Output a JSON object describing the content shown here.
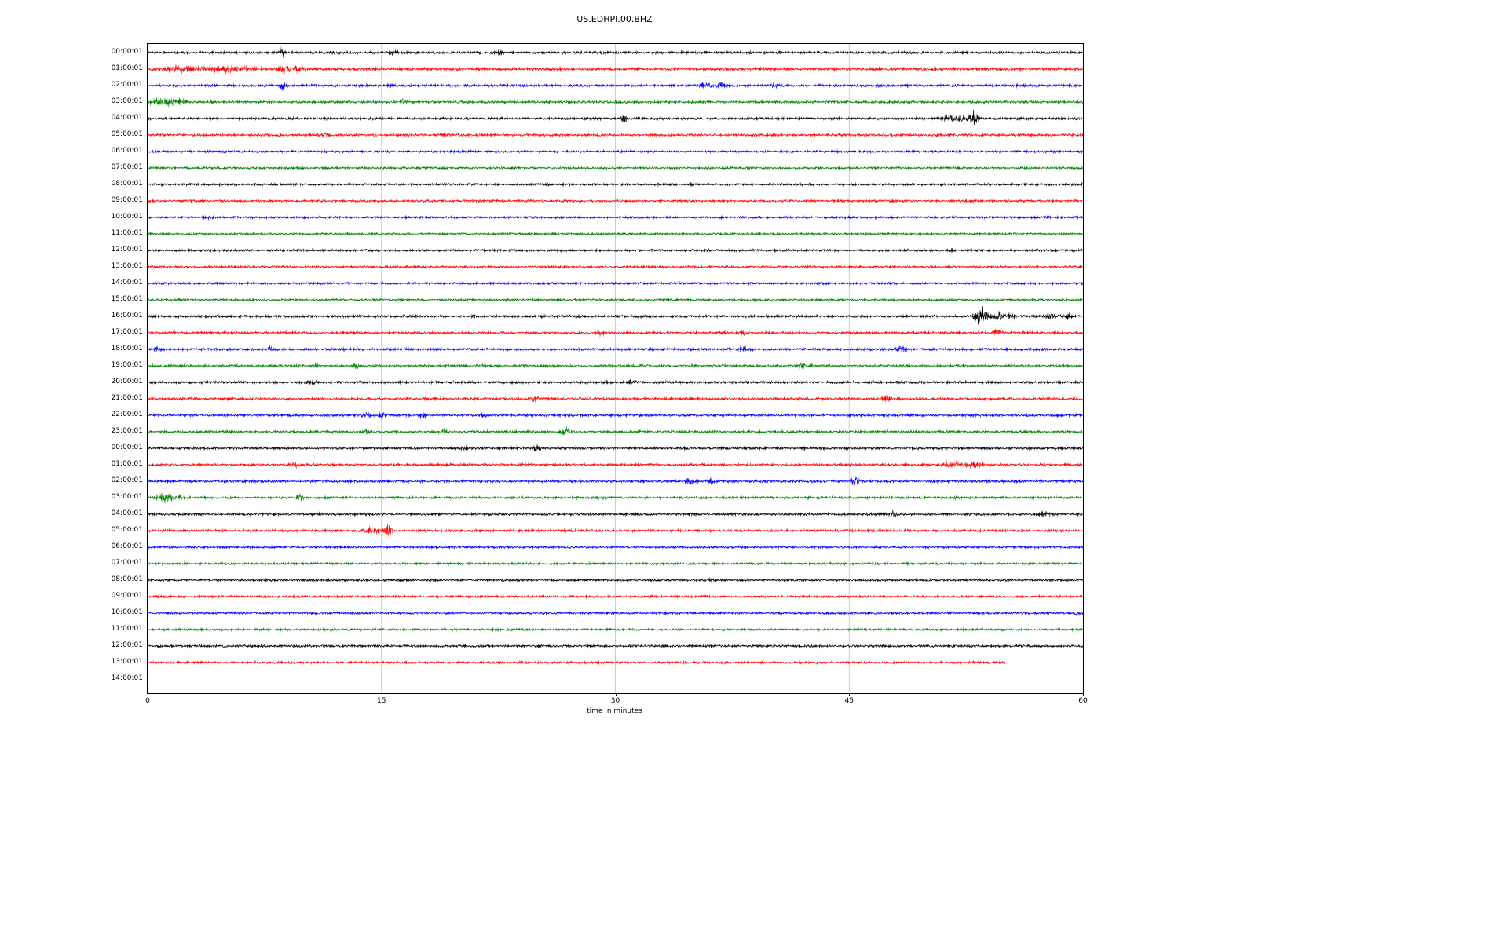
{
  "figure": {
    "background": "#ffffff",
    "grid_color": "#c0c0c0",
    "axis_color": "#000000"
  },
  "chart_data": {
    "type": "line",
    "subtype": "helicorder-seismogram",
    "title": "US.EDHPI.00.BHZ",
    "xlabel": "time in minutes",
    "x_range": [
      0,
      60
    ],
    "x_ticks": [
      0,
      15,
      30,
      45,
      60
    ],
    "grid": "vertical-at-15-30-45",
    "legend": "none",
    "trace_colors_cycle": [
      "#000000",
      "#ff0000",
      "#0000ff",
      "#008000"
    ],
    "rows": [
      {
        "label": "00:00:01",
        "color": "#000000",
        "end": 60,
        "amp": 1,
        "events": [
          {
            "t": 8.6,
            "amp": 2.2,
            "dur": 0.3
          },
          {
            "t": 15.7,
            "amp": 1.2,
            "dur": 0.8
          },
          {
            "t": 22.4,
            "amp": 0.8,
            "dur": 0.6
          }
        ]
      },
      {
        "label": "01:00:01",
        "color": "#ff0000",
        "end": 60,
        "amp": 1.15,
        "events": [
          {
            "t": 2.5,
            "amp": 1.2,
            "dur": 2.5
          },
          {
            "t": 5.5,
            "amp": 1.5,
            "dur": 2.0
          },
          {
            "t": 8.6,
            "amp": 2.5,
            "dur": 0.5
          },
          {
            "t": 9.5,
            "amp": 1.2,
            "dur": 1.0
          }
        ]
      },
      {
        "label": "02:00:01",
        "color": "#0000ff",
        "end": 60,
        "amp": 1,
        "events": [
          {
            "t": 8.6,
            "amp": 5.0,
            "dur": 0.25
          },
          {
            "t": 35.8,
            "amp": 2.2,
            "dur": 0.5
          },
          {
            "t": 36.8,
            "amp": 2.2,
            "dur": 0.5
          },
          {
            "t": 40.3,
            "amp": 1.5,
            "dur": 0.4
          }
        ]
      },
      {
        "label": "03:00:01",
        "color": "#008000",
        "end": 60,
        "amp": 1,
        "events": [
          {
            "t": 0.9,
            "amp": 2.8,
            "dur": 1.2
          },
          {
            "t": 2.0,
            "amp": 1.5,
            "dur": 1.0
          },
          {
            "t": 16.4,
            "amp": 1.8,
            "dur": 0.4
          }
        ]
      },
      {
        "label": "04:00:01",
        "color": "#000000",
        "end": 60,
        "amp": 1,
        "events": [
          {
            "t": 30.6,
            "amp": 2.0,
            "dur": 0.4
          },
          {
            "t": 51.8,
            "amp": 2.0,
            "dur": 1.2
          },
          {
            "t": 53.0,
            "amp": 7.0,
            "dur": 0.45
          }
        ]
      },
      {
        "label": "05:00:01",
        "color": "#ff0000",
        "end": 60,
        "amp": 1,
        "events": [
          {
            "t": 11.3,
            "amp": 1.0,
            "dur": 0.5
          },
          {
            "t": 19.0,
            "amp": 0.8,
            "dur": 0.5
          }
        ]
      },
      {
        "label": "06:00:01",
        "color": "#0000ff",
        "end": 60,
        "amp": 0.9,
        "events": []
      },
      {
        "label": "07:00:01",
        "color": "#008000",
        "end": 60,
        "amp": 0.9,
        "events": []
      },
      {
        "label": "08:00:01",
        "color": "#000000",
        "end": 60,
        "amp": 0.9,
        "events": []
      },
      {
        "label": "09:00:01",
        "color": "#ff0000",
        "end": 60,
        "amp": 0.9,
        "events": []
      },
      {
        "label": "10:00:01",
        "color": "#0000ff",
        "end": 60,
        "amp": 0.9,
        "events": [
          {
            "t": 4.0,
            "amp": 0.6,
            "dur": 0.5
          }
        ]
      },
      {
        "label": "11:00:01",
        "color": "#008000",
        "end": 60,
        "amp": 0.9,
        "events": []
      },
      {
        "label": "12:00:01",
        "color": "#000000",
        "end": 60,
        "amp": 0.95,
        "events": []
      },
      {
        "label": "13:00:01",
        "color": "#ff0000",
        "end": 60,
        "amp": 0.9,
        "events": []
      },
      {
        "label": "14:00:01",
        "color": "#0000ff",
        "end": 60,
        "amp": 0.9,
        "events": []
      },
      {
        "label": "15:00:01",
        "color": "#008000",
        "end": 60,
        "amp": 0.9,
        "events": []
      },
      {
        "label": "16:00:01",
        "color": "#000000",
        "end": 60,
        "amp": 1,
        "events": [
          {
            "t": 53.4,
            "amp": 8.0,
            "dur": 0.6
          },
          {
            "t": 54.3,
            "amp": 3.0,
            "dur": 0.8
          },
          {
            "t": 55.2,
            "amp": 2.0,
            "dur": 0.6
          },
          {
            "t": 57.9,
            "amp": 2.2,
            "dur": 0.4
          },
          {
            "t": 59.0,
            "amp": 2.5,
            "dur": 0.5
          }
        ]
      },
      {
        "label": "17:00:01",
        "color": "#ff0000",
        "end": 60,
        "amp": 1,
        "events": [
          {
            "t": 29.1,
            "amp": 2.0,
            "dur": 0.4
          },
          {
            "t": 38.2,
            "amp": 1.2,
            "dur": 0.4
          },
          {
            "t": 54.5,
            "amp": 2.8,
            "dur": 0.4
          }
        ]
      },
      {
        "label": "18:00:01",
        "color": "#0000ff",
        "end": 60,
        "amp": 1,
        "events": [
          {
            "t": 0.6,
            "amp": 2.0,
            "dur": 0.3
          },
          {
            "t": 7.8,
            "amp": 2.0,
            "dur": 0.3
          },
          {
            "t": 38.2,
            "amp": 1.5,
            "dur": 0.5
          },
          {
            "t": 48.3,
            "amp": 1.5,
            "dur": 0.5
          }
        ]
      },
      {
        "label": "19:00:01",
        "color": "#008000",
        "end": 60,
        "amp": 1,
        "events": [
          {
            "t": 10.7,
            "amp": 1.5,
            "dur": 0.5
          },
          {
            "t": 13.4,
            "amp": 1.5,
            "dur": 0.4
          },
          {
            "t": 42.0,
            "amp": 1.0,
            "dur": 0.6
          }
        ]
      },
      {
        "label": "20:00:01",
        "color": "#000000",
        "end": 60,
        "amp": 1,
        "events": [
          {
            "t": 10.5,
            "amp": 1.0,
            "dur": 0.6
          },
          {
            "t": 31.0,
            "amp": 1.0,
            "dur": 0.5
          }
        ]
      },
      {
        "label": "21:00:01",
        "color": "#ff0000",
        "end": 60,
        "amp": 1,
        "events": [
          {
            "t": 24.8,
            "amp": 2.0,
            "dur": 0.4
          },
          {
            "t": 47.4,
            "amp": 2.0,
            "dur": 0.4
          }
        ]
      },
      {
        "label": "22:00:01",
        "color": "#0000ff",
        "end": 60,
        "amp": 1,
        "events": [
          {
            "t": 14.0,
            "amp": 1.5,
            "dur": 0.5
          },
          {
            "t": 15.1,
            "amp": 1.8,
            "dur": 0.4
          },
          {
            "t": 17.6,
            "amp": 1.5,
            "dur": 0.4
          },
          {
            "t": 21.6,
            "amp": 1.2,
            "dur": 0.4
          }
        ]
      },
      {
        "label": "23:00:01",
        "color": "#008000",
        "end": 60,
        "amp": 1,
        "events": [
          {
            "t": 14.0,
            "amp": 1.8,
            "dur": 0.4
          },
          {
            "t": 19.0,
            "amp": 1.2,
            "dur": 0.5
          },
          {
            "t": 26.8,
            "amp": 2.2,
            "dur": 0.5
          }
        ]
      },
      {
        "label": "00:00:01",
        "color": "#000000",
        "end": 60,
        "amp": 1,
        "events": [
          {
            "t": 20.3,
            "amp": 1.0,
            "dur": 0.4
          },
          {
            "t": 24.9,
            "amp": 1.8,
            "dur": 0.4
          }
        ]
      },
      {
        "label": "01:00:01",
        "color": "#ff0000",
        "end": 60,
        "amp": 1,
        "events": [
          {
            "t": 9.4,
            "amp": 1.8,
            "dur": 0.5
          },
          {
            "t": 51.6,
            "amp": 2.2,
            "dur": 0.8
          },
          {
            "t": 53.0,
            "amp": 2.2,
            "dur": 0.8
          }
        ]
      },
      {
        "label": "02:00:01",
        "color": "#0000ff",
        "end": 60,
        "amp": 1,
        "events": [
          {
            "t": 34.8,
            "amp": 2.2,
            "dur": 0.5
          },
          {
            "t": 36.0,
            "amp": 2.2,
            "dur": 0.5
          },
          {
            "t": 45.4,
            "amp": 2.5,
            "dur": 0.5
          }
        ]
      },
      {
        "label": "03:00:01",
        "color": "#008000",
        "end": 60,
        "amp": 1,
        "events": [
          {
            "t": 1.0,
            "amp": 2.8,
            "dur": 0.7
          },
          {
            "t": 1.8,
            "amp": 1.8,
            "dur": 0.6
          },
          {
            "t": 9.7,
            "amp": 1.8,
            "dur": 0.5
          },
          {
            "t": 52.0,
            "amp": 1.5,
            "dur": 0.4
          }
        ]
      },
      {
        "label": "04:00:01",
        "color": "#000000",
        "end": 60,
        "amp": 1,
        "events": [
          {
            "t": 47.8,
            "amp": 1.8,
            "dur": 0.4
          },
          {
            "t": 57.5,
            "amp": 1.5,
            "dur": 0.8
          }
        ]
      },
      {
        "label": "05:00:01",
        "color": "#ff0000",
        "end": 60,
        "amp": 1,
        "events": [
          {
            "t": 14.4,
            "amp": 2.5,
            "dur": 0.8
          },
          {
            "t": 15.4,
            "amp": 7.0,
            "dur": 0.35
          }
        ]
      },
      {
        "label": "06:00:01",
        "color": "#0000ff",
        "end": 60,
        "amp": 0.9,
        "events": []
      },
      {
        "label": "07:00:01",
        "color": "#008000",
        "end": 60,
        "amp": 0.9,
        "events": []
      },
      {
        "label": "08:00:01",
        "color": "#000000",
        "end": 60,
        "amp": 0.9,
        "events": [
          {
            "t": 36.1,
            "amp": 1.0,
            "dur": 0.4
          }
        ]
      },
      {
        "label": "09:00:01",
        "color": "#ff0000",
        "end": 60,
        "amp": 0.95,
        "events": []
      },
      {
        "label": "10:00:01",
        "color": "#0000ff",
        "end": 60,
        "amp": 0.9,
        "events": [
          {
            "t": 59.6,
            "amp": 1.5,
            "dur": 0.3
          }
        ]
      },
      {
        "label": "11:00:01",
        "color": "#008000",
        "end": 60,
        "amp": 0.9,
        "events": []
      },
      {
        "label": "12:00:01",
        "color": "#000000",
        "end": 60,
        "amp": 0.95,
        "events": []
      },
      {
        "label": "13:00:01",
        "color": "#ff0000",
        "end": 55,
        "amp": 0.95,
        "events": []
      },
      {
        "label": "14:00:01",
        "color": "#0000ff",
        "end": 0,
        "amp": 0,
        "events": []
      }
    ]
  }
}
